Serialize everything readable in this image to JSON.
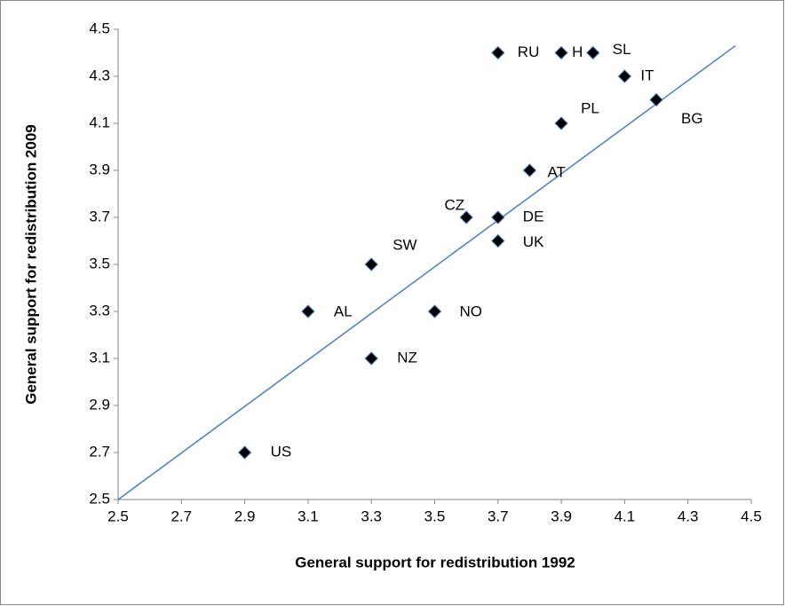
{
  "chart_data": {
    "type": "scatter",
    "x_label": "General support for redistribution 1992",
    "y_label": "General support for redistribution 2009",
    "series": [
      {
        "color": "#000000",
        "labels": [
          "RU",
          "H",
          "SL",
          "IT",
          "BG",
          "PL",
          "AT",
          "CZ",
          "DE",
          "UK",
          "SW",
          "AL",
          "NO",
          "NZ",
          "US"
        ],
        "x": [
          3.7,
          3.9,
          4.0,
          4.1,
          4.2,
          3.9,
          3.8,
          3.6,
          3.7,
          3.7,
          3.3,
          3.1,
          3.5,
          3.3,
          2.9
        ],
        "values": [
          4.4,
          4.4,
          4.4,
          4.3,
          4.2,
          4.1,
          3.9,
          3.7,
          3.7,
          3.6,
          3.5,
          3.3,
          3.3,
          3.1,
          2.7
        ]
      }
    ],
    "trendline": {
      "color": "#4a7ebb",
      "x": [
        2.5,
        4.45
      ],
      "y": [
        2.5,
        4.43
      ]
    },
    "xlim": [
      2.5,
      4.5
    ],
    "xticks": [
      2.5,
      2.7,
      2.9,
      3.1,
      3.3,
      3.5,
      3.7,
      3.9,
      4.1,
      4.3,
      4.5
    ],
    "ylim": [
      2.5,
      4.5
    ],
    "yticks": [
      2.5,
      2.7,
      2.9,
      3.1,
      3.3,
      3.5,
      3.7,
      3.9,
      4.1,
      4.3,
      4.5
    ],
    "grid": false
  }
}
